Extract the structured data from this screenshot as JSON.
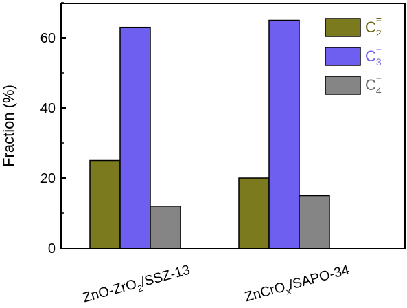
{
  "chart_data": {
    "type": "bar",
    "ylabel": "Fraction (%)",
    "ylim": [
      0,
      70
    ],
    "yticks": [
      "0",
      "20",
      "40",
      "60"
    ],
    "categories": [
      {
        "base": "ZnO-ZrO",
        "sub": "2",
        "rest": "/SSZ-13"
      },
      {
        "base": "ZnCrO",
        "sub": "x",
        "rest": "/SAPO-34"
      }
    ],
    "series": [
      {
        "name": {
          "base": "C",
          "sub": "2",
          "sup": "="
        },
        "values": [
          25,
          20
        ],
        "color": "#7b7a1e",
        "label_color": "#6b6a14"
      },
      {
        "name": {
          "base": "C",
          "sub": "3",
          "sup": "="
        },
        "values": [
          63,
          65
        ],
        "color": "#6f5ff0",
        "label_color": "#6f5ff0"
      },
      {
        "name": {
          "base": "C",
          "sub": "4",
          "sup": "="
        },
        "values": [
          12,
          15
        ],
        "color": "#858585",
        "label_color": "#6a6a6a"
      }
    ],
    "legend": "top-right",
    "grid": false
  }
}
